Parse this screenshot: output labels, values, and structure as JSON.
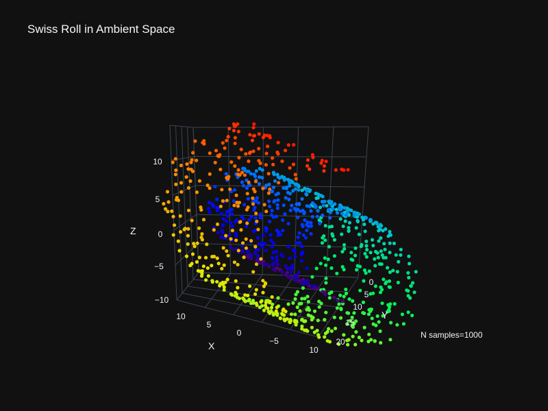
{
  "chart_data": {
    "type": "scatter3d",
    "title": "Swiss Roll in Ambient Space",
    "annotation": "N samples=1000",
    "n_samples": 1000,
    "xlabel": "X",
    "ylabel": "Y",
    "zlabel": "Z",
    "x_ticks": [
      "10",
      "5",
      "0",
      "−5",
      "10"
    ],
    "y_ticks": [
      "0",
      "5",
      "10",
      "15",
      "20"
    ],
    "z_ticks": [
      "10",
      "5",
      "0",
      "−5",
      "−10"
    ],
    "colorscale": "rainbow (purple → blue → cyan → green → yellow → orange → red)",
    "t_range": [
      4.71,
      14.14
    ],
    "height_range": [
      0,
      21
    ],
    "grid": true,
    "background": "#111111"
  }
}
